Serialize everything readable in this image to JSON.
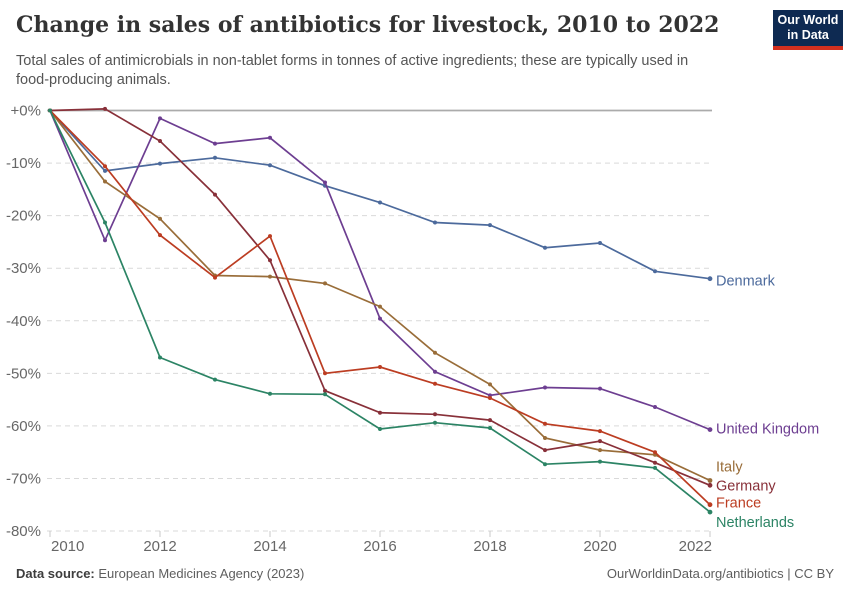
{
  "header": {
    "title": "Change in sales of antibiotics for livestock, 2010 to 2022",
    "subtitle": "Total sales of antimicrobials in non-tablet forms in tonnes of active ingredients; these are typically used in food-producing animals.",
    "logo": {
      "line1": "Our World",
      "line2": "in Data",
      "bg_color": "#0E2A52",
      "accent_color": "#D3301F"
    }
  },
  "chart_data": {
    "type": "line",
    "title": "Change in sales of antibiotics for livestock, 2010 to 2022",
    "xlabel": "",
    "ylabel": "",
    "unit": "%",
    "grid": true,
    "legend_position": "right-end-labels",
    "x": [
      2010,
      2011,
      2012,
      2013,
      2014,
      2015,
      2016,
      2017,
      2018,
      2019,
      2020,
      2021,
      2022
    ],
    "xticks": [
      2010,
      2012,
      2014,
      2016,
      2018,
      2020,
      2022
    ],
    "ylim": [
      -80,
      0
    ],
    "yticks": [
      0,
      -10,
      -20,
      -30,
      -40,
      -50,
      -60,
      -70,
      -80
    ],
    "ytick_labels": [
      "+0%",
      "-10%",
      "-20%",
      "-30%",
      "-40%",
      "-50%",
      "-60%",
      "-70%",
      "-80%"
    ],
    "series": [
      {
        "name": "Denmark",
        "color": "#4C6A9C",
        "label_dy": 2,
        "values": [
          0,
          -11.5,
          -10.1,
          -9,
          -10.4,
          -14.3,
          -17.5,
          -21.3,
          -21.8,
          -26.1,
          -25.2,
          -30.6,
          -32
        ]
      },
      {
        "name": "United Kingdom",
        "color": "#6D3E91",
        "label_dy": -1,
        "values": [
          0,
          -24.7,
          -1.5,
          -6.3,
          -5.2,
          -13.7,
          -39.6,
          -49.7,
          -54.2,
          -52.7,
          -52.9,
          -56.4,
          -60.7
        ]
      },
      {
        "name": "Italy",
        "color": "#996D39",
        "label_dy": -14,
        "values": [
          0,
          -13.5,
          -20.6,
          -31.4,
          -31.6,
          -32.9,
          -37.3,
          -46.1,
          -52.1,
          -62.3,
          -64.6,
          -65.5,
          -70.4
        ]
      },
      {
        "name": "Germany",
        "color": "#883039",
        "label_dy": 0,
        "values": [
          0,
          0.3,
          -5.8,
          -16,
          -28.5,
          -53.3,
          -57.5,
          -57.8,
          -58.9,
          -64.6,
          -62.9,
          -67,
          -71.3
        ]
      },
      {
        "name": "France",
        "color": "#BC3D22",
        "label_dy": -2,
        "values": [
          0,
          -10.6,
          -23.7,
          -31.8,
          -23.9,
          -50,
          -48.8,
          -52,
          -54.7,
          -59.6,
          -61,
          -65,
          -75
        ]
      },
      {
        "name": "Netherlands",
        "color": "#2C8465",
        "label_dy": 10,
        "values": [
          0,
          -21.3,
          -47,
          -51.2,
          -53.9,
          -54,
          -60.6,
          -59.4,
          -60.4,
          -67.3,
          -66.8,
          -68,
          -76.4
        ]
      }
    ]
  },
  "footer": {
    "source_label": "Data source:",
    "source_value": " European Medicines Agency (2023)",
    "attribution": "OurWorldinData.org/antibiotics | CC BY"
  }
}
